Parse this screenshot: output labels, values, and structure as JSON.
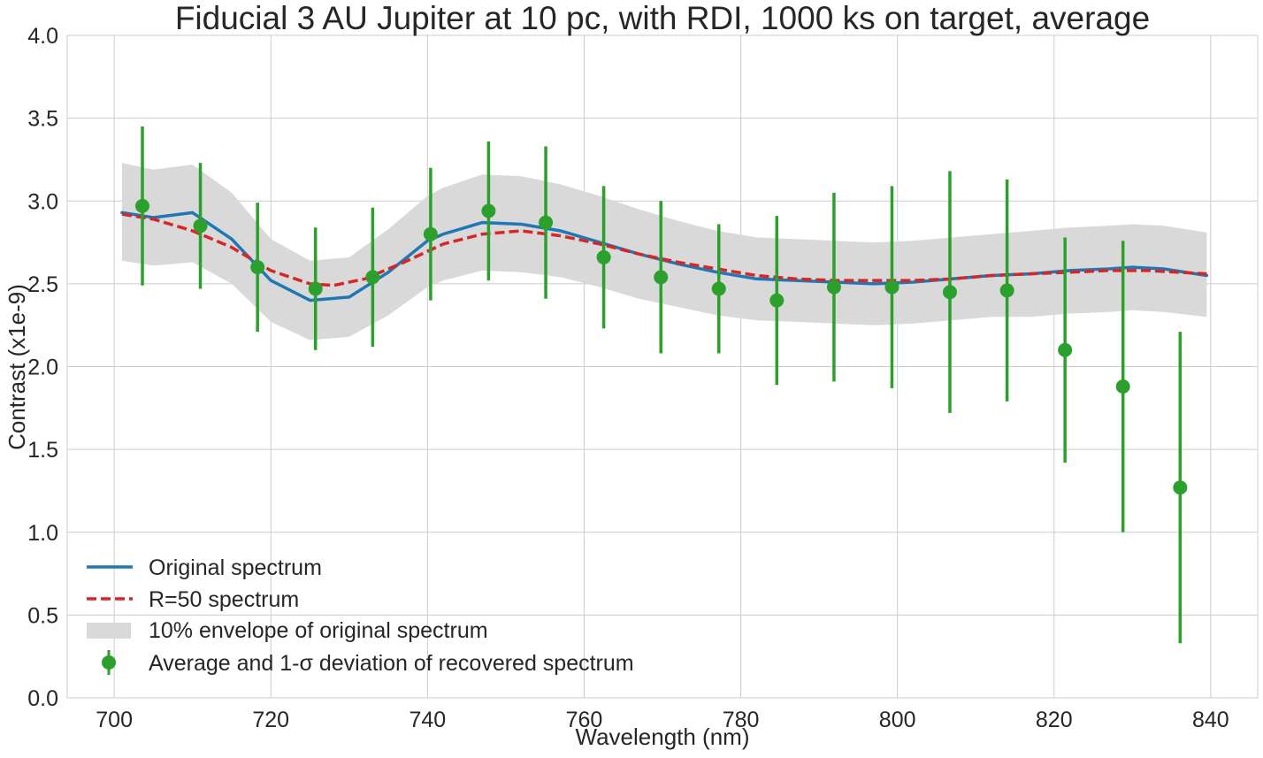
{
  "chart_data": {
    "type": "line",
    "title": "Fiducial 3 AU Jupiter at 10 pc, with RDI, 1000 ks on target, average",
    "xlabel": "Wavelength (nm)",
    "ylabel": "Contrast (x1e-9)",
    "xlim": [
      694,
      846
    ],
    "ylim": [
      0,
      4
    ],
    "xticks": [
      700,
      720,
      740,
      760,
      780,
      800,
      820,
      840
    ],
    "yticks": [
      0.0,
      0.5,
      1.0,
      1.5,
      2.0,
      2.5,
      3.0,
      3.5,
      4.0
    ],
    "grid": true,
    "legend_position": "lower-left",
    "series": [
      {
        "name": "Original spectrum",
        "kind": "line",
        "color": "#1f77b4",
        "style": "solid",
        "x": [
          701,
          705,
          710,
          715,
          720,
          725,
          730,
          735,
          740,
          742,
          747,
          752,
          757,
          762,
          767,
          772,
          777,
          782,
          787,
          792,
          797,
          802,
          807,
          812,
          817,
          822,
          827,
          830,
          834,
          839.5
        ],
        "y": [
          2.93,
          2.9,
          2.93,
          2.77,
          2.52,
          2.4,
          2.42,
          2.57,
          2.76,
          2.8,
          2.87,
          2.86,
          2.82,
          2.75,
          2.68,
          2.62,
          2.57,
          2.53,
          2.52,
          2.51,
          2.5,
          2.51,
          2.53,
          2.55,
          2.56,
          2.58,
          2.59,
          2.6,
          2.59,
          2.55
        ]
      },
      {
        "name": "R=50 spectrum",
        "kind": "line",
        "color": "#d62728",
        "style": "dashed",
        "x": [
          701,
          705,
          710,
          715,
          720,
          725,
          728,
          732,
          737,
          742,
          747,
          752,
          757,
          762,
          767,
          772,
          777,
          782,
          787,
          792,
          797,
          802,
          807,
          812,
          817,
          822,
          827,
          832,
          839.5
        ],
        "y": [
          2.92,
          2.89,
          2.82,
          2.72,
          2.58,
          2.5,
          2.49,
          2.53,
          2.63,
          2.74,
          2.8,
          2.82,
          2.79,
          2.74,
          2.68,
          2.63,
          2.59,
          2.55,
          2.53,
          2.52,
          2.52,
          2.52,
          2.53,
          2.55,
          2.56,
          2.57,
          2.58,
          2.58,
          2.56
        ]
      },
      {
        "name": "10% envelope of original spectrum",
        "kind": "band",
        "color": "#d9d9d9",
        "x": [
          701,
          705,
          710,
          715,
          720,
          725,
          730,
          735,
          740,
          742,
          747,
          752,
          757,
          762,
          767,
          772,
          777,
          782,
          787,
          792,
          797,
          802,
          807,
          812,
          817,
          822,
          827,
          830,
          834,
          839.5
        ],
        "lower": [
          2.64,
          2.61,
          2.63,
          2.5,
          2.27,
          2.16,
          2.18,
          2.31,
          2.48,
          2.52,
          2.58,
          2.57,
          2.54,
          2.48,
          2.41,
          2.36,
          2.31,
          2.28,
          2.27,
          2.26,
          2.25,
          2.26,
          2.28,
          2.3,
          2.3,
          2.32,
          2.33,
          2.34,
          2.33,
          2.3
        ],
        "upper": [
          3.23,
          3.19,
          3.22,
          3.05,
          2.77,
          2.64,
          2.66,
          2.83,
          3.03,
          3.08,
          3.16,
          3.15,
          3.1,
          3.03,
          2.95,
          2.88,
          2.82,
          2.78,
          2.77,
          2.76,
          2.75,
          2.76,
          2.78,
          2.8,
          2.82,
          2.84,
          2.85,
          2.86,
          2.85,
          2.81
        ]
      },
      {
        "name": "Average and 1-σ deviation of recovered spectrum",
        "kind": "errorbar",
        "color": "#2ca02c",
        "x": [
          703.6,
          711,
          718.3,
          725.7,
          733,
          740.4,
          747.8,
          755.1,
          762.5,
          769.8,
          777.2,
          784.6,
          791.9,
          799.3,
          806.7,
          814,
          821.4,
          828.8,
          836.1
        ],
        "y": [
          2.97,
          2.85,
          2.6,
          2.47,
          2.54,
          2.8,
          2.94,
          2.87,
          2.66,
          2.54,
          2.47,
          2.4,
          2.48,
          2.48,
          2.45,
          2.46,
          2.1,
          1.88,
          1.27
        ],
        "err": [
          0.48,
          0.38,
          0.39,
          0.37,
          0.42,
          0.4,
          0.42,
          0.46,
          0.43,
          0.46,
          0.39,
          0.51,
          0.57,
          0.61,
          0.73,
          0.67,
          0.68,
          0.88,
          0.94
        ]
      }
    ]
  }
}
